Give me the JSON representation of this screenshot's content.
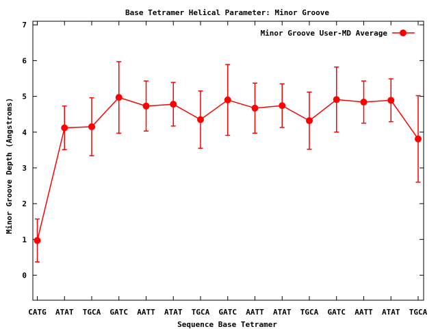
{
  "chart_data": {
    "type": "line",
    "title": "Base Tetramer Helical Parameter: Minor Groove",
    "xlabel": "Sequence Base Tetramer",
    "ylabel": "Minor Groove Depth (Angstroms)",
    "categories": [
      "CATG",
      "ATAT",
      "TGCA",
      "GATC",
      "AATT",
      "ATAT",
      "TGCA",
      "GATC",
      "AATT",
      "ATAT",
      "TGCA",
      "GATC",
      "AATT",
      "ATAT",
      "TGCA"
    ],
    "ylim": [
      -0.7,
      7.1
    ],
    "yticks": [
      0,
      1,
      2,
      3,
      4,
      5,
      6,
      7
    ],
    "grid": false,
    "legend_position": "top-right",
    "series": [
      {
        "name": "Minor Groove User-MD Average",
        "color": "#ff0000",
        "values": [
          0.97,
          4.12,
          4.15,
          4.97,
          4.73,
          4.78,
          4.35,
          4.9,
          4.67,
          4.74,
          4.32,
          4.91,
          4.84,
          4.89,
          3.81
        ],
        "errors": [
          0.6,
          0.61,
          0.81,
          1.0,
          0.7,
          0.61,
          0.8,
          0.99,
          0.7,
          0.61,
          0.8,
          0.91,
          0.59,
          0.6,
          1.21
        ]
      }
    ]
  }
}
